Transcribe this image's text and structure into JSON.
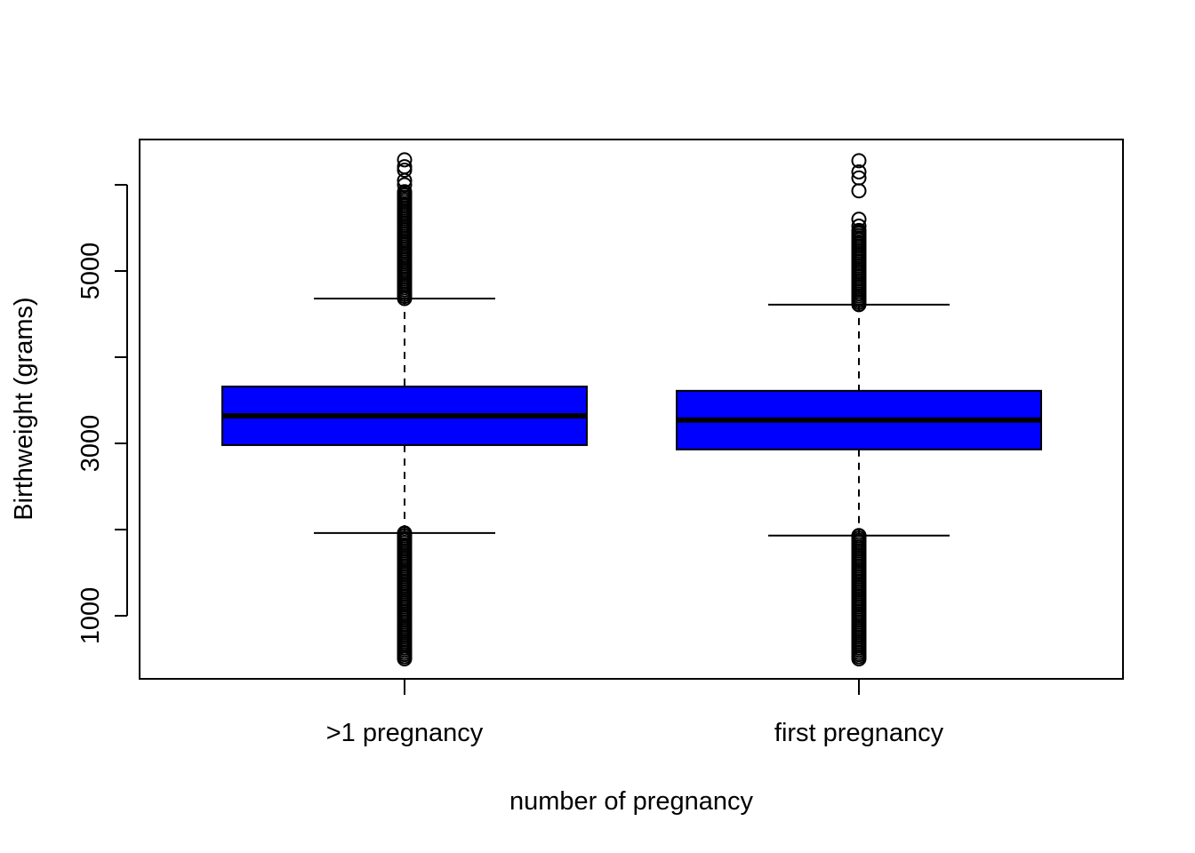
{
  "chart_data": {
    "type": "box",
    "title": "",
    "xlabel": "number of pregnancy",
    "ylabel": "Birthweight (grams)",
    "ylim": [
      500,
      6300
    ],
    "yticks": [
      1000,
      3000,
      5000
    ],
    "yticks_minor": [
      1000,
      2000,
      3000,
      4000,
      5000,
      6000
    ],
    "grid": false,
    "box_color": "#0000ff",
    "categories": [
      ">1 pregnancy",
      "first pregnancy"
    ],
    "boxes": [
      {
        "label": ">1 pregnancy",
        "q1": 2980,
        "median": 3320,
        "q3": 3660,
        "whisker_low": 1960,
        "whisker_high": 4680,
        "outliers_low_range": [
          500,
          1960
        ],
        "outliers_high_range": [
          4680,
          5920
        ],
        "outliers_high_extra": [
          6000,
          6050,
          6170,
          6210,
          6290
        ]
      },
      {
        "label": "first pregnancy",
        "q1": 2930,
        "median": 3270,
        "q3": 3610,
        "whisker_low": 1930,
        "whisker_high": 4610,
        "outliers_low_range": [
          500,
          1930
        ],
        "outliers_high_range": [
          4610,
          5470
        ],
        "outliers_high_extra": [
          5520,
          5600,
          5930,
          6080,
          6150,
          6280
        ]
      }
    ]
  }
}
